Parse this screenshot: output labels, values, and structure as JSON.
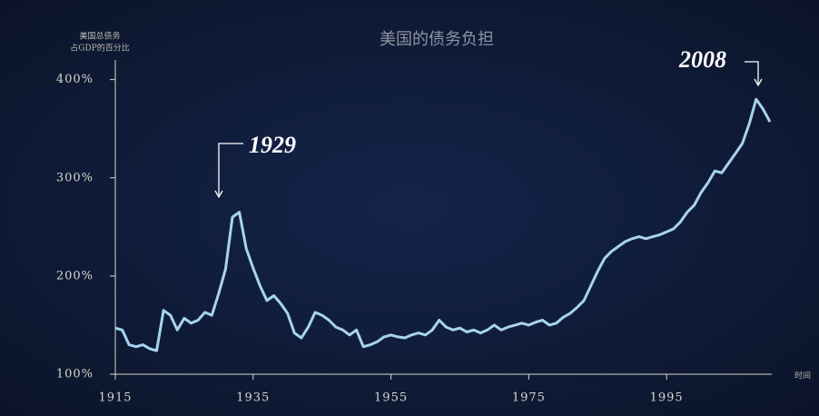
{
  "chart_data": {
    "type": "line",
    "title": "美国的债务负担",
    "ylabel": [
      "美国总债务",
      "占GDP的百分比"
    ],
    "xlabel": "时间",
    "annotations": [
      "1929",
      "2008"
    ],
    "x": [
      1915,
      1916,
      1917,
      1918,
      1919,
      1920,
      1921,
      1922,
      1923,
      1924,
      1925,
      1926,
      1927,
      1928,
      1929,
      1930,
      1931,
      1932,
      1933,
      1934,
      1935,
      1936,
      1937,
      1938,
      1939,
      1940,
      1941,
      1942,
      1943,
      1944,
      1945,
      1946,
      1947,
      1948,
      1949,
      1950,
      1951,
      1952,
      1953,
      1954,
      1955,
      1956,
      1957,
      1958,
      1959,
      1960,
      1961,
      1962,
      1963,
      1964,
      1965,
      1966,
      1967,
      1968,
      1969,
      1970,
      1971,
      1972,
      1973,
      1974,
      1975,
      1976,
      1977,
      1978,
      1979,
      1980,
      1981,
      1982,
      1983,
      1984,
      1985,
      1986,
      1987,
      1988,
      1989,
      1990,
      1991,
      1992,
      1993,
      1994,
      1995,
      1996,
      1997,
      1998,
      1999,
      2000,
      2001,
      2002,
      2003,
      2004,
      2005,
      2006,
      2007,
      2008,
      2009,
      2010
    ],
    "series": [
      {
        "color": "#a8d3ef",
        "values": [
          147,
          145,
          130,
          128,
          130,
          126,
          124,
          165,
          160,
          145,
          157,
          152,
          155,
          163,
          160,
          182,
          207,
          260,
          265,
          228,
          208,
          190,
          175,
          180,
          172,
          162,
          142,
          137,
          148,
          163,
          160,
          155,
          148,
          145,
          140,
          145,
          128,
          130,
          133,
          138,
          140,
          138,
          137,
          140,
          142,
          140,
          145,
          155,
          148,
          145,
          147,
          143,
          145,
          142,
          145,
          150,
          145,
          148,
          150,
          152,
          150,
          153,
          155,
          150,
          152,
          158,
          162,
          168,
          175,
          190,
          205,
          218,
          225,
          230,
          235,
          238,
          240,
          238,
          240,
          242,
          245,
          248,
          255,
          265,
          272,
          285,
          295,
          307,
          305,
          315,
          325,
          335,
          355,
          380,
          370,
          357
        ]
      }
    ],
    "xlim": [
      1915,
      2010
    ],
    "ylim": [
      100,
      420
    ],
    "xticks": [
      1915,
      1935,
      1955,
      1975,
      1995
    ],
    "yticks": [
      {
        "value": 100,
        "label": "100%"
      },
      {
        "value": 200,
        "label": "200%"
      },
      {
        "value": 300,
        "label": "300%"
      },
      {
        "value": 400,
        "label": "400%"
      }
    ]
  }
}
